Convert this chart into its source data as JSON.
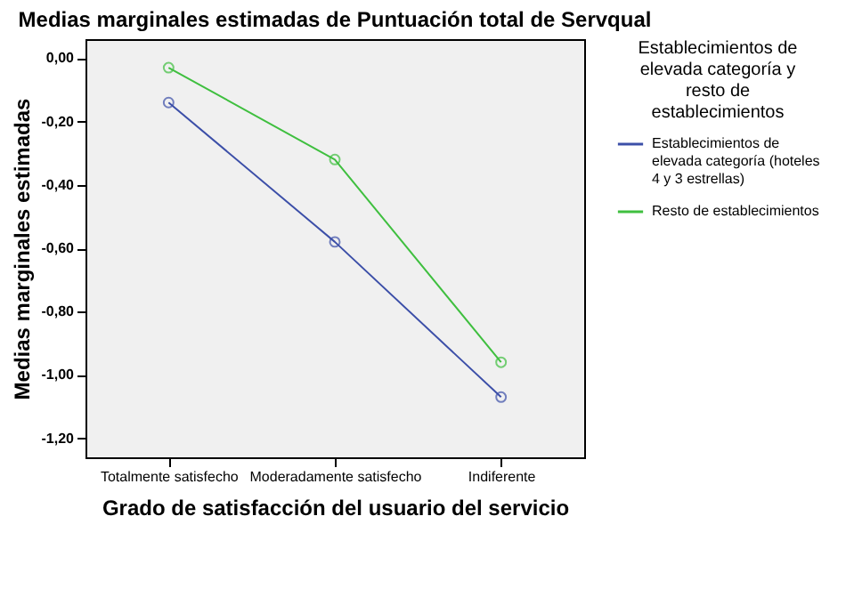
{
  "chart_data": {
    "type": "line",
    "title": "Medias marginales estimadas de Puntuación total de Servqual",
    "xlabel": "Grado de satisfacción del usuario del servicio",
    "ylabel": "Medias marginales estimadas",
    "legend_title": "Establecimientos de elevada categoría y resto de establecimientos",
    "categories": [
      "Totalmente satisfecho",
      "Moderadamente satisfecho",
      "Indiferente"
    ],
    "series": [
      {
        "name": "Establecimientos de elevada categoría (hoteles 4 y 3 estrellas)",
        "color": "#3c4fa8",
        "values": [
          -0.14,
          -0.58,
          -1.07
        ]
      },
      {
        "name": "Resto de establecimientos",
        "color": "#3fbf3f",
        "values": [
          -0.03,
          -0.32,
          -0.96
        ]
      }
    ],
    "ylim": [
      -1.26,
      0.06
    ],
    "yticks": [
      {
        "value": 0,
        "label": "0,00"
      },
      {
        "value": -0.2,
        "label": "-0,20"
      },
      {
        "value": -0.4,
        "label": "-0,40"
      },
      {
        "value": -0.6,
        "label": "-0,60"
      },
      {
        "value": -0.8,
        "label": "-0,80"
      },
      {
        "value": -1.0,
        "label": "-1,00"
      },
      {
        "value": -1.2,
        "label": "-1,20"
      }
    ],
    "marker": "circle",
    "grid": false,
    "legend": "right"
  }
}
